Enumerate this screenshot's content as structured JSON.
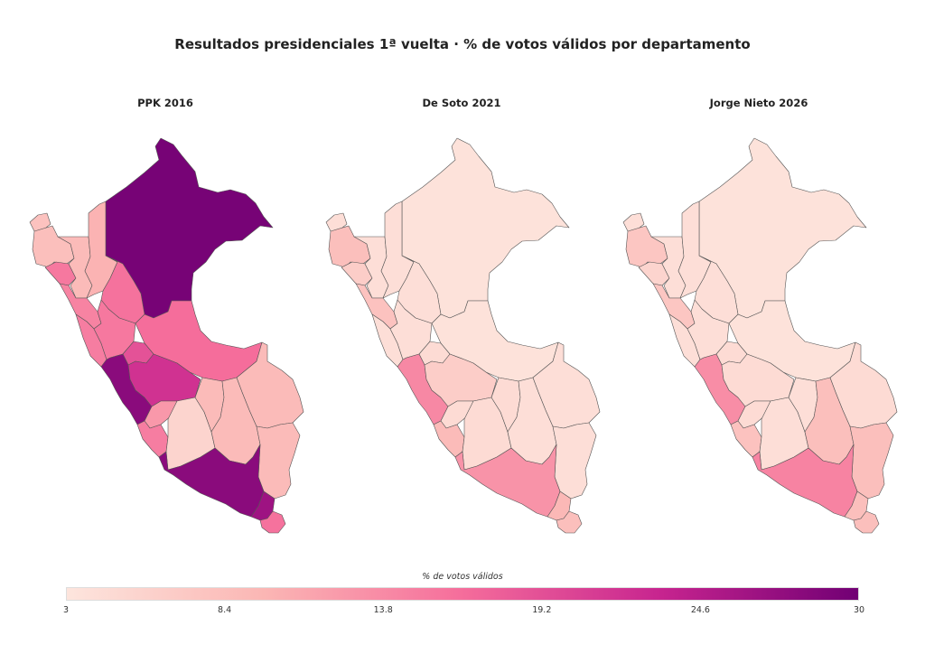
{
  "chart_data": {
    "type": "choropleth",
    "title": "Resultados presidenciales 1ª vuelta · % de votos válidos por departamento",
    "colorbar": {
      "title": "% de votos válidos",
      "min": 3,
      "max": 30,
      "ticks": [
        "3",
        "8.4",
        "13.8",
        "19.2",
        "24.6",
        "30"
      ],
      "colors": [
        "#fde5dd",
        "#fbb6b4",
        "#f56d9b",
        "#c7248f",
        "#710074"
      ]
    },
    "maps": [
      {
        "subtitle": "PPK 2016",
        "values": {
          "tumbes": 8.0,
          "piura": 8.4,
          "lambayeque": 15.5,
          "cajamarca": 9.0,
          "amazonas": 10.0,
          "loreto": 29.5,
          "la_libertad": 14.5,
          "san_martin": 16.0,
          "ucayali": 16.5,
          "ancash": 15.0,
          "huanuco": 15.5,
          "pasco": 19.0,
          "junin": 22.0,
          "lima": 28.0,
          "huancavelica": 12.5,
          "ica": 15.0,
          "ayacucho": 5.5,
          "apurimac": 9.0,
          "cusco": 9.0,
          "madre_de_dios": 9.0,
          "puno": 9.0,
          "arequipa": 28.0,
          "moquegua": 26.5,
          "tacna": 16.0
        }
      },
      {
        "subtitle": "De Soto 2021",
        "values": {
          "tumbes": 4.0,
          "piura": 8.5,
          "lambayeque": 6.5,
          "cajamarca": 4.0,
          "amazonas": 4.0,
          "loreto": 3.5,
          "la_libertad": 8.0,
          "san_martin": 4.0,
          "ucayali": 3.5,
          "ancash": 4.0,
          "huanuco": 4.0,
          "pasco": 4.5,
          "junin": 6.5,
          "lima": 14.0,
          "huancavelica": 4.5,
          "ica": 9.0,
          "ayacucho": 4.5,
          "apurimac": 4.5,
          "cusco": 4.0,
          "madre_de_dios": 4.0,
          "puno": 4.0,
          "arequipa": 13.0,
          "moquegua": 9.5,
          "tacna": 8.5
        }
      },
      {
        "subtitle": "Jorge Nieto 2026",
        "values": {
          "tumbes": 4.0,
          "piura": 7.5,
          "lambayeque": 5.5,
          "cajamarca": 4.0,
          "amazonas": 4.0,
          "loreto": 3.5,
          "la_libertad": 7.5,
          "san_martin": 4.0,
          "ucayali": 3.5,
          "ancash": 4.0,
          "huanuco": 4.0,
          "pasco": 4.5,
          "junin": 4.5,
          "lima": 13.5,
          "huancavelica": 4.5,
          "ica": 8.0,
          "ayacucho": 4.0,
          "apurimac": 4.0,
          "cusco": 8.5,
          "madre_de_dios": 4.5,
          "puno": 8.5,
          "arequipa": 14.5,
          "moquegua": 8.5,
          "tacna": 8.5
        }
      }
    ]
  }
}
